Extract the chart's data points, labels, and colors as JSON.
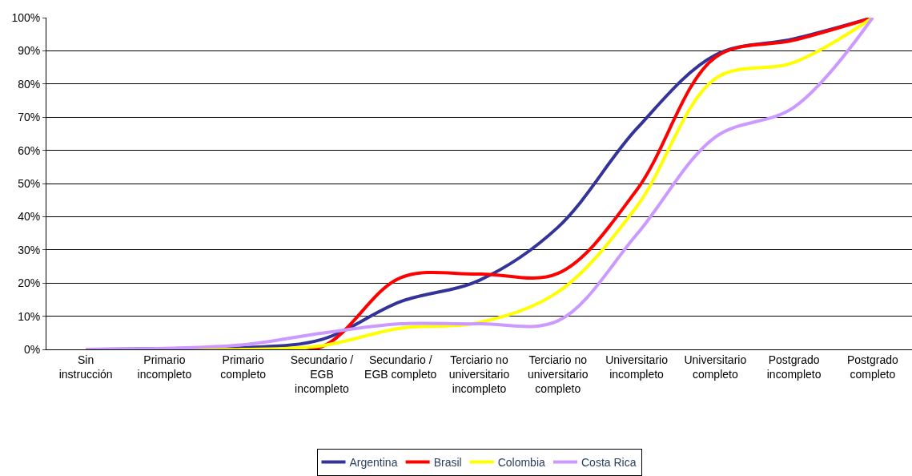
{
  "chart_data": {
    "type": "line",
    "categories": [
      "Sin instrucción",
      "Primario incompleto",
      "Primario completo",
      "Secundario / EGB incompleto",
      "Secundario / EGB completo",
      "Terciario no universitario incompleto",
      "Terciario no universitario completo",
      "Universitario incompleto",
      "Universitario completo",
      "Postgrado incompleto",
      "Postgrado completo"
    ],
    "series": [
      {
        "name": "Argentina",
        "color": "#333399",
        "values": [
          0,
          0.2,
          0.5,
          3.0,
          14.4,
          20.8,
          36.8,
          66.5,
          88.7,
          93.6,
          100
        ]
      },
      {
        "name": "Brasil",
        "color": "#ff0000",
        "values": [
          null,
          null,
          0,
          0.8,
          21.6,
          22.7,
          22.9,
          48,
          88,
          93.2,
          100
        ]
      },
      {
        "name": "Colombia",
        "color": "#ffff00",
        "values": [
          0,
          0,
          0,
          1.1,
          6.4,
          8.1,
          17.3,
          43,
          81.6,
          86.5,
          100
        ]
      },
      {
        "name": "Costa Rica",
        "color": "#cc99ff",
        "values": [
          0,
          0.3,
          1.4,
          4.9,
          7.7,
          7.7,
          8.6,
          34.6,
          64,
          73,
          100
        ]
      }
    ],
    "ylim": [
      0,
      100
    ],
    "yticks": [
      {
        "value": 0,
        "label": "0%"
      },
      {
        "value": 10,
        "label": "10%"
      },
      {
        "value": 20,
        "label": "20%"
      },
      {
        "value": 30,
        "label": "30%"
      },
      {
        "value": 40,
        "label": "40%"
      },
      {
        "value": 50,
        "label": "50%"
      },
      {
        "value": 60,
        "label": "60%"
      },
      {
        "value": 70,
        "label": "70%"
      },
      {
        "value": 80,
        "label": "80%"
      },
      {
        "value": 90,
        "label": "90%"
      },
      {
        "value": 100,
        "label": "100%"
      }
    ],
    "grid": "y",
    "legend": "bottom",
    "marker": "none",
    "line_style": "solid"
  }
}
